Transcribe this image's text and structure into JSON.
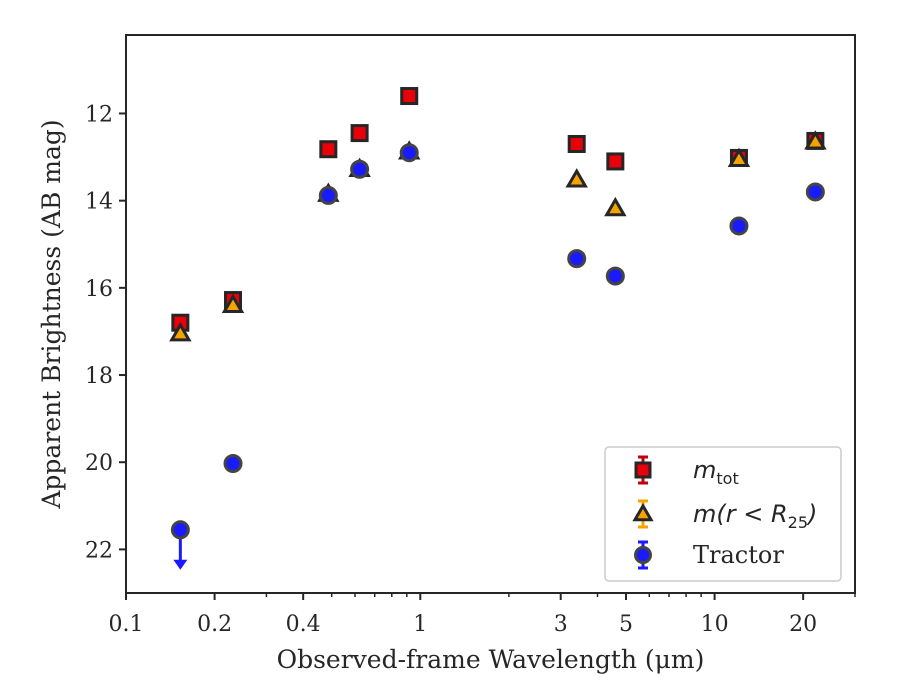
{
  "chart_data": {
    "type": "scatter",
    "xlabel": "Observed-frame Wavelength (μm)",
    "ylabel": "Apparent Brightness (AB mag)",
    "xscale": "log",
    "xlim": [
      0.1,
      30
    ],
    "ylim": [
      23,
      10.2
    ],
    "y_inverted": true,
    "x_ticks": [
      0.1,
      0.2,
      0.4,
      1,
      3,
      5,
      10,
      20
    ],
    "x_tick_labels": [
      "0.1",
      "0.2",
      "0.4",
      "1",
      "3",
      "5",
      "10",
      "20"
    ],
    "y_ticks": [
      12,
      14,
      16,
      18,
      20,
      22
    ],
    "y_tick_labels": [
      "12",
      "14",
      "16",
      "18",
      "20",
      "22"
    ],
    "grid": false,
    "legend_position": "lower-right",
    "series": [
      {
        "key": "mtot",
        "legend_main": "m",
        "legend_sub": "tot",
        "marker": "square",
        "color": "#e8000b",
        "errorbar_color": "#c0000a",
        "x": [
          0.153,
          0.231,
          0.487,
          0.622,
          0.917,
          3.4,
          4.6,
          12.1,
          22.0
        ],
        "y": [
          16.8,
          16.28,
          12.82,
          12.45,
          11.6,
          12.7,
          13.1,
          13.02,
          12.63
        ]
      },
      {
        "key": "mr25",
        "legend_main": "m(r < R",
        "legend_sub": "25",
        "legend_close": ")",
        "marker": "triangle",
        "color": "#f5a300",
        "errorbar_color": "#f5a300",
        "x": [
          0.153,
          0.231,
          0.487,
          0.622,
          0.917,
          3.4,
          4.6,
          12.1,
          22.0
        ],
        "y": [
          17.05,
          16.4,
          13.85,
          13.28,
          12.88,
          13.52,
          14.18,
          13.05,
          12.65
        ]
      },
      {
        "key": "tractor",
        "legend_main": "Tractor",
        "marker": "circle",
        "color": "#1a1aff",
        "errorbar_color": "#1a1aff",
        "x": [
          0.153,
          0.231,
          0.487,
          0.622,
          0.917,
          3.4,
          4.6,
          12.1,
          22.0
        ],
        "y": [
          21.55,
          20.03,
          13.88,
          13.28,
          12.9,
          15.33,
          15.73,
          14.58,
          13.8
        ],
        "upper_limit": [
          true,
          false,
          false,
          false,
          false,
          false,
          false,
          false,
          false
        ]
      }
    ]
  }
}
